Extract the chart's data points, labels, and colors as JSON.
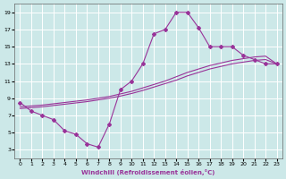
{
  "title": "",
  "xlabel": "Windchill (Refroidissement éolien,°C)",
  "ylabel": "",
  "bg_color": "#cce8e8",
  "line_color": "#993399",
  "grid_color": "#ffffff",
  "xlim": [
    -0.5,
    23.5
  ],
  "ylim": [
    2,
    20
  ],
  "xticks": [
    0,
    1,
    2,
    3,
    4,
    5,
    6,
    7,
    8,
    9,
    10,
    11,
    12,
    13,
    14,
    15,
    16,
    17,
    18,
    19,
    20,
    21,
    22,
    23
  ],
  "yticks": [
    3,
    5,
    7,
    9,
    11,
    13,
    15,
    17,
    19
  ],
  "series1_x": [
    0,
    1,
    2,
    3,
    4,
    5,
    6,
    7,
    8,
    9,
    10,
    11,
    12,
    13,
    14,
    15,
    16,
    17,
    18,
    19,
    20,
    21,
    22,
    23
  ],
  "series1_y": [
    8.5,
    7.5,
    7.0,
    6.5,
    5.2,
    4.8,
    3.7,
    3.3,
    6.0,
    10.0,
    11.0,
    13.0,
    16.5,
    17.0,
    19.0,
    19.0,
    17.2,
    15.0,
    15.0,
    15.0,
    14.0,
    13.5,
    13.0,
    13.0
  ],
  "series2_x": [
    0,
    1,
    2,
    3,
    4,
    5,
    6,
    7,
    8,
    9,
    10,
    11,
    12,
    13,
    14,
    15,
    16,
    17,
    18,
    19,
    20,
    21,
    22,
    23
  ],
  "series2_y": [
    8.0,
    8.1,
    8.2,
    8.35,
    8.5,
    8.65,
    8.8,
    9.0,
    9.2,
    9.5,
    9.8,
    10.2,
    10.6,
    11.0,
    11.5,
    12.0,
    12.4,
    12.8,
    13.1,
    13.4,
    13.6,
    13.8,
    13.9,
    13.0
  ],
  "series3_x": [
    0,
    1,
    2,
    3,
    4,
    5,
    6,
    7,
    8,
    9,
    10,
    11,
    12,
    13,
    14,
    15,
    16,
    17,
    18,
    19,
    20,
    21,
    22,
    23
  ],
  "series3_y": [
    7.8,
    7.9,
    8.0,
    8.15,
    8.3,
    8.45,
    8.6,
    8.8,
    9.0,
    9.25,
    9.55,
    9.9,
    10.3,
    10.7,
    11.1,
    11.6,
    12.0,
    12.4,
    12.7,
    13.0,
    13.2,
    13.4,
    13.5,
    13.0
  ]
}
